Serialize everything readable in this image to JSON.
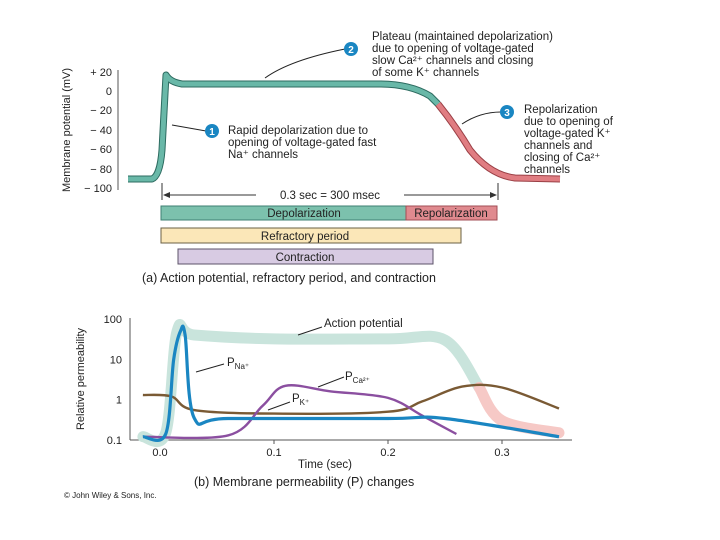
{
  "top_panel": {
    "y_axis_label": "Membrane potential (mV)",
    "y_ticks": [
      "+ 20",
      "0",
      "− 20",
      "− 40",
      "− 60",
      "− 80",
      "− 100"
    ],
    "annotations": [
      {
        "num": "1",
        "lines": [
          "Rapid depolarization due to",
          "opening of voltage-gated fast",
          "Na⁺ channels"
        ]
      },
      {
        "num": "2",
        "lines": [
          "Plateau (maintained depolarization)",
          "due to opening of voltage-gated",
          "slow Ca²⁺ channels and closing",
          "of some K⁺ channels"
        ]
      },
      {
        "num": "3",
        "lines": [
          "Repolarization",
          "due to opening of",
          "voltage-gated K⁺",
          "channels and",
          "closing of Ca²⁺",
          "channels"
        ]
      }
    ],
    "duration_label": "0.3 sec = 300 msec",
    "bars": {
      "depolarization": "Depolarization",
      "repolarization": "Repolarization",
      "refractory": "Refractory period",
      "contraction": "Contraction"
    },
    "caption": "(a) Action potential, refractory period, and contraction"
  },
  "bottom_panel": {
    "y_axis_label": "Relative permeability",
    "x_axis_label": "Time (sec)",
    "caption": "(b) Membrane permeability (P) changes",
    "copyright": "© John Wiley & Sons, Inc.",
    "series_labels": {
      "action_potential": "Action potential",
      "na": "P",
      "na_sub": "Na⁺",
      "ca": "P",
      "ca_sub": "Ca²⁺",
      "k": "P",
      "k_sub": "K⁺"
    }
  },
  "colors": {
    "teal": "#69b8a8",
    "pink": "#e07d82",
    "bar_depol": "#7cc1ad",
    "bar_repol": "#e08a8f",
    "refractory": "#fbe7b8",
    "contraction": "#d8cbe3",
    "na_curve": "#1a86c2",
    "ca_curve": "#8b4fa0",
    "k_curve": "#7a5a34",
    "ap_shadow_teal": "#c9e4dc",
    "ap_shadow_pink": "#f6c9c6",
    "badge": "#1a86c2"
  },
  "chart_data": [
    {
      "type": "line",
      "title": "Action potential, refractory period, and contraction",
      "xlabel": "",
      "ylabel": "Membrane potential (mV)",
      "ylim": [
        -100,
        20
      ],
      "y_ticks": [
        20,
        0,
        -20,
        -40,
        -60,
        -80,
        -100
      ],
      "series": [
        {
          "name": "Membrane potential",
          "x": [
            0.0,
            0.02,
            0.025,
            0.04,
            0.1,
            0.2,
            0.24,
            0.28,
            0.31,
            0.34,
            0.37
          ],
          "values": [
            -90,
            -90,
            20,
            8,
            8,
            8,
            5,
            -20,
            -75,
            -88,
            -90
          ]
        }
      ]
    },
    {
      "type": "line",
      "title": "Membrane permeability (P) changes",
      "xlabel": "Time (sec)",
      "ylabel": "Relative permeability",
      "scale": "log",
      "ylim": [
        0.1,
        100
      ],
      "x_ticks": [
        0.0,
        0.1,
        0.2,
        0.3
      ],
      "y_ticks": [
        100,
        10,
        1,
        0.1
      ],
      "series": [
        {
          "name": "PNa+",
          "x": [
            -0.015,
            0.005,
            0.012,
            0.018,
            0.022,
            0.03,
            0.06,
            0.2,
            0.25,
            0.35
          ],
          "values": [
            0.12,
            0.14,
            10,
            50,
            40,
            0.35,
            0.34,
            0.34,
            0.34,
            0.12
          ]
        },
        {
          "name": "PCa2+",
          "x": [
            -0.015,
            0.06,
            0.09,
            0.11,
            0.15,
            0.2,
            0.23,
            0.26
          ],
          "values": [
            0.12,
            0.13,
            0.7,
            2.2,
            1.6,
            1.1,
            0.4,
            0.14
          ]
        },
        {
          "name": "PK+",
          "x": [
            -0.015,
            0.01,
            0.03,
            0.1,
            0.2,
            0.23,
            0.265,
            0.3,
            0.35
          ],
          "values": [
            1.3,
            1.2,
            0.55,
            0.45,
            0.5,
            0.9,
            2.1,
            2.0,
            0.6
          ]
        },
        {
          "name": "Action potential",
          "x": [
            -0.015,
            0.005,
            0.015,
            0.03,
            0.1,
            0.2,
            0.25,
            0.28,
            0.3,
            0.35
          ],
          "values": [
            0.12,
            0.15,
            50,
            40,
            32,
            32,
            30,
            2,
            0.3,
            0.15
          ]
        }
      ]
    }
  ]
}
